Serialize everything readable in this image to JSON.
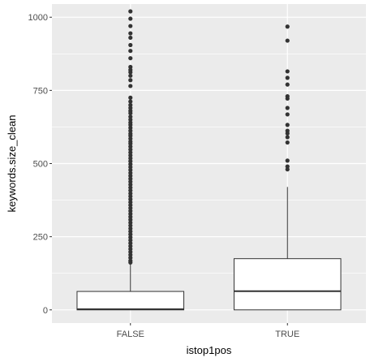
{
  "chart_data": {
    "type": "boxplot",
    "xlabel": "istop1pos",
    "ylabel": "keywords.size_clean",
    "ylim": [
      -45,
      1045
    ],
    "yticks": [
      0,
      250,
      500,
      750,
      1000
    ],
    "ytick_labels": [
      "0",
      "250",
      "500",
      "750",
      "1000"
    ],
    "categories": [
      "FALSE",
      "TRUE"
    ],
    "grid": true,
    "panel_color": "#ebebeb",
    "grid_color": "#ffffff",
    "boxes": [
      {
        "category": "FALSE",
        "q1": 0,
        "median": 2,
        "q3": 63,
        "whisker_low": 0,
        "whisker_high": 158,
        "outliers": [
          1020,
          995,
          970,
          945,
          930,
          905,
          885,
          860,
          830,
          820,
          812,
          800,
          785,
          765,
          725,
          712,
          700,
          690,
          680,
          672,
          660,
          650,
          640,
          632,
          622,
          612,
          602,
          595,
          585,
          575,
          568,
          558,
          548,
          538,
          528,
          518,
          508,
          498,
          488,
          478,
          468,
          458,
          448,
          438,
          428,
          418,
          408,
          398,
          388,
          378,
          368,
          358,
          348,
          338,
          328,
          318,
          308,
          298,
          288,
          278,
          268,
          258,
          248,
          238,
          228,
          218,
          208,
          198,
          188,
          178,
          168,
          162
        ]
      },
      {
        "category": "TRUE",
        "q1": 0,
        "median": 64,
        "q3": 175,
        "whisker_low": 0,
        "whisker_high": 420,
        "outliers": [
          968,
          920,
          815,
          793,
          770,
          730,
          722,
          690,
          668,
          632,
          612,
          603,
          590,
          572,
          510,
          490,
          480
        ]
      }
    ]
  }
}
